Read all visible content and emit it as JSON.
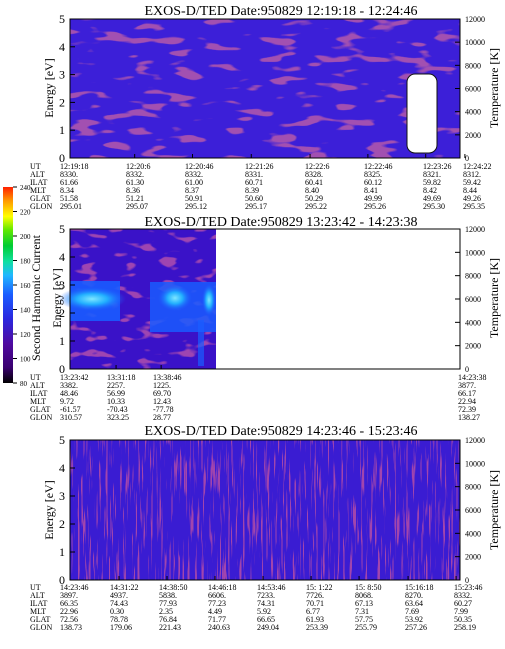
{
  "chart_data": [
    {
      "type": "heatmap",
      "title": "EXOS-D/TED   Date:950829   12:19:18 - 12:24:46",
      "ylabel": "Energy [eV]",
      "y2label": "Temperature [K]",
      "ylim": [
        0,
        5
      ],
      "y2lim": [
        0,
        12000
      ],
      "yticks": [
        "0",
        "1",
        "2",
        "3",
        "4",
        "5"
      ],
      "y2ticks": [
        "0",
        "2000",
        "4000",
        "6000",
        "8000",
        "10000",
        "12000"
      ],
      "start_time": "12:19:18",
      "end_time": "12:24:46",
      "data_extent": "full",
      "pattern": "low",
      "gap": "data gap near 12:24, 1.1-3.0 eV",
      "ephemeris": {
        "labels": [
          "UT",
          "ALT",
          "ILAT",
          "MLT",
          "GLAT",
          "GLON"
        ],
        "columns": [
          [
            "12:19:18",
            "8330.",
            "61.66",
            "8.34",
            "51.58",
            "295.01"
          ],
          [
            "12:20:6",
            "8332.",
            "61.30",
            "8.36",
            "51.21",
            "295.07"
          ],
          [
            "12:20:46",
            "8332.",
            "61.00",
            "8.37",
            "50.91",
            "295.12"
          ],
          [
            "12:21:26",
            "8331.",
            "60.71",
            "8.39",
            "50.60",
            "295.17"
          ],
          [
            "12:22:6",
            "8328.",
            "60.41",
            "8.40",
            "50.29",
            "295.22"
          ],
          [
            "12:22:46",
            "8325.",
            "60.12",
            "8.41",
            "49.99",
            "295.26"
          ],
          [
            "12:23:26",
            "8321.",
            "59.82",
            "8.42",
            "49.69",
            "295.30"
          ],
          [
            "12:24:22",
            "8312.",
            "59.42",
            "8.44",
            "49.26",
            "295.35"
          ]
        ]
      }
    },
    {
      "type": "heatmap",
      "title": "EXOS-D/TED   Date:950829   13:23:42 - 14:23:38",
      "ylabel": "Energy [eV]",
      "y2label": "Temperature [K]",
      "ylim": [
        0,
        5
      ],
      "y2lim": [
        0,
        12000
      ],
      "yticks": [
        "0",
        "1",
        "2",
        "3",
        "4",
        "5"
      ],
      "y2ticks": [
        "0",
        "2000",
        "4000",
        "6000",
        "8000",
        "10000",
        "12000"
      ],
      "start_time": "13:23:42",
      "end_time": "14:23:38",
      "data_extent": "until ~13:42, no data after",
      "pattern": "enhanced second-harmonic band near 1.8-3.0 eV",
      "ephemeris": {
        "labels": [
          "UT",
          "ALT",
          "ILAT",
          "MLT",
          "GLAT",
          "GLON"
        ],
        "columns": [
          [
            "13:23:42",
            "3382.",
            "48.46",
            "9.72",
            "-61.57",
            "310.57"
          ],
          [
            "13:31:18",
            "2257.",
            "56.99",
            "10.33",
            "-70.43",
            "323.25"
          ],
          [
            "13:38:46",
            "1225.",
            "69.70",
            "12.43",
            "-77.78",
            "28.77"
          ],
          [
            "14:23:38",
            "3877.",
            "66.17",
            "22.94",
            "72.39",
            "138.27"
          ]
        ]
      }
    },
    {
      "type": "heatmap",
      "title": "EXOS-D/TED   Date:950829   14:23:46 - 15:23:46",
      "ylabel": "Energy [eV]",
      "y2label": "Temperature [K]",
      "ylim": [
        0,
        5
      ],
      "y2lim": [
        0,
        12000
      ],
      "yticks": [
        "0",
        "1",
        "2",
        "3",
        "4",
        "5"
      ],
      "y2ticks": [
        "0",
        "2000",
        "4000",
        "6000",
        "8000",
        "10000",
        "12000"
      ],
      "start_time": "14:23:46",
      "end_time": "15:23:46",
      "data_extent": "full",
      "pattern": "low, vertical streaks",
      "ephemeris": {
        "labels": [
          "UT",
          "ALT",
          "ILAT",
          "MLT",
          "GLAT",
          "GLON"
        ],
        "columns": [
          [
            "14:23:46",
            "3897.",
            "66.35",
            "22.96",
            "72.56",
            "138.73"
          ],
          [
            "14:31:22",
            "4937.",
            "74.43",
            "0.30",
            "78.78",
            "179.06"
          ],
          [
            "14:38:50",
            "5838.",
            "77.93",
            "2.35",
            "76.84",
            "221.43"
          ],
          [
            "14:46:18",
            "6606.",
            "77.23",
            "4.49",
            "71.77",
            "240.63"
          ],
          [
            "14:53:46",
            "7233.",
            "74.31",
            "5.92",
            "66.65",
            "249.04"
          ],
          [
            "15: 1:22",
            "7726.",
            "70.71",
            "6.77",
            "61.93",
            "253.39"
          ],
          [
            "15: 8:50",
            "8068.",
            "67.13",
            "7.31",
            "57.75",
            "255.79"
          ],
          [
            "15:16:18",
            "8270.",
            "63.64",
            "7.69",
            "53.92",
            "257.26"
          ],
          [
            "15:23:46",
            "8332.",
            "60.27",
            "7.99",
            "50.35",
            "258.19"
          ]
        ]
      }
    }
  ],
  "colorbar": {
    "label": "Second Harmonic Current",
    "ticks": [
      "80",
      "100",
      "120",
      "140",
      "160",
      "180",
      "200",
      "220",
      "240"
    ],
    "colors": [
      "#000000",
      "#3a0070",
      "#4f0aa0",
      "#2a28e0",
      "#1a5cff",
      "#20b8ff",
      "#10e0a0",
      "#00cc33",
      "#60e800",
      "#ffff00",
      "#ff9900",
      "#ff2000"
    ]
  }
}
